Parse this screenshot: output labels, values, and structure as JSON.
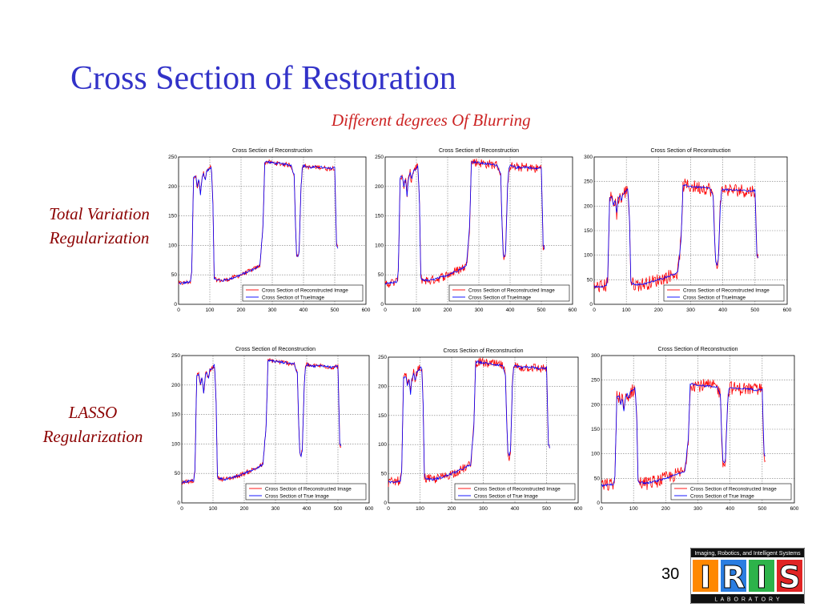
{
  "slide": {
    "title": "Cross Section of Restoration",
    "subtitle": "Different degrees Of Blurring",
    "page_number": "30"
  },
  "rows": [
    {
      "label_line1": "Total Variation",
      "label_line2": "Regularization"
    },
    {
      "label_line1": "LASSO",
      "label_line2": "Regularization"
    }
  ],
  "logo": {
    "tagline": "Imaging, Robotics, and Intelligent Systems",
    "letters": [
      "I",
      "R",
      "I",
      "S"
    ],
    "subline": "L A B O R A T O R Y",
    "colors": {
      "I1": "#ff8800",
      "R": "#2a7de1",
      "I2": "#2db34a",
      "S": "#e02424",
      "bar": "#111111"
    }
  },
  "colors": {
    "reconstructed": "#ff0000",
    "true": "#0000ff",
    "title": "#3232c8",
    "subtitle": "#cc2222",
    "row_label": "#8b0000"
  },
  "chart_data": [
    {
      "id": "tv-low",
      "type": "line",
      "title": "Cross Section of Reconstruction",
      "xlim": [
        0,
        600
      ],
      "ylim": [
        0,
        250
      ],
      "xticks": [
        0,
        100,
        200,
        300,
        400,
        500,
        600
      ],
      "yticks": [
        0,
        50,
        100,
        150,
        200,
        250
      ],
      "grid": true,
      "legend": "bottom-right",
      "noise": 4,
      "series": [
        {
          "name": "Cross Section of Reconstructed Image",
          "color": "#ff0000"
        },
        {
          "name": "Cross Section of TrueImage",
          "color": "#0000ff"
        }
      ]
    },
    {
      "id": "tv-mid",
      "type": "line",
      "title": "Cross Section of Reconstruction",
      "xlim": [
        0,
        600
      ],
      "ylim": [
        0,
        250
      ],
      "xticks": [
        0,
        100,
        200,
        300,
        400,
        500,
        600
      ],
      "yticks": [
        0,
        50,
        100,
        150,
        200,
        250
      ],
      "grid": true,
      "legend": "bottom-right",
      "noise": 8,
      "series": [
        {
          "name": "Cross Section of Reconstructed Image",
          "color": "#ff0000"
        },
        {
          "name": "Cross Section of TrueImage",
          "color": "#0000ff"
        }
      ]
    },
    {
      "id": "tv-high",
      "type": "line",
      "title": "Cross Section of Reconstruction",
      "xlim": [
        0,
        600
      ],
      "ylim": [
        0,
        300
      ],
      "xticks": [
        0,
        100,
        200,
        300,
        400,
        500,
        600
      ],
      "yticks": [
        0,
        50,
        100,
        150,
        200,
        250,
        300
      ],
      "grid": true,
      "legend": "bottom-right",
      "noise": 14,
      "series": [
        {
          "name": "Cross Section of Reconstructed Image",
          "color": "#ff0000"
        },
        {
          "name": "Cross Section of TrueImage",
          "color": "#0000ff"
        }
      ]
    },
    {
      "id": "lasso-low",
      "type": "line",
      "title": "Cross Section of Reconstruction",
      "xlim": [
        0,
        600
      ],
      "ylim": [
        0,
        250
      ],
      "xticks": [
        0,
        100,
        200,
        300,
        400,
        500,
        600
      ],
      "yticks": [
        0,
        50,
        100,
        150,
        200,
        250
      ],
      "grid": true,
      "legend": "bottom-right",
      "noise": 4,
      "series": [
        {
          "name": "Cross Section of Reconstructed Image",
          "color": "#ff0000"
        },
        {
          "name": "Cross Section of True Image",
          "color": "#0000ff"
        }
      ]
    },
    {
      "id": "lasso-mid",
      "type": "line",
      "title": "Cross Section of Reconstruction",
      "xlim": [
        0,
        600
      ],
      "ylim": [
        0,
        250
      ],
      "xticks": [
        0,
        100,
        200,
        300,
        400,
        500,
        600
      ],
      "yticks": [
        0,
        50,
        100,
        150,
        200,
        250
      ],
      "grid": true,
      "legend": "bottom-right",
      "noise": 8,
      "series": [
        {
          "name": "Cross Section of Reconstructed Image",
          "color": "#ff0000"
        },
        {
          "name": "Cross Section of True Image",
          "color": "#0000ff"
        }
      ]
    },
    {
      "id": "lasso-high",
      "type": "line",
      "title": "Cross Section of Reconstruction",
      "xlim": [
        0,
        600
      ],
      "ylim": [
        0,
        300
      ],
      "xticks": [
        0,
        100,
        200,
        300,
        400,
        500,
        600
      ],
      "yticks": [
        0,
        50,
        100,
        150,
        200,
        250,
        300
      ],
      "grid": true,
      "legend": "bottom-right",
      "noise": 14,
      "series": [
        {
          "name": "Cross Section of Reconstructed Image",
          "color": "#ff0000"
        },
        {
          "name": "Cross Section of True Image",
          "color": "#0000ff"
        }
      ]
    }
  ],
  "cross_section_profile": {
    "x": [
      0,
      38,
      42,
      48,
      55,
      60,
      65,
      70,
      75,
      80,
      85,
      90,
      95,
      100,
      105,
      110,
      114,
      118,
      140,
      170,
      200,
      230,
      260,
      270,
      276,
      282,
      300,
      330,
      360,
      370,
      374,
      378,
      382,
      386,
      392,
      396,
      400,
      420,
      450,
      480,
      500,
      504,
      506,
      510
    ],
    "y": [
      35,
      38,
      55,
      215,
      218,
      200,
      215,
      185,
      215,
      222,
      210,
      225,
      228,
      230,
      235,
      170,
      45,
      42,
      40,
      44,
      50,
      57,
      65,
      130,
      240,
      242,
      240,
      238,
      236,
      220,
      140,
      85,
      80,
      90,
      200,
      230,
      235,
      232,
      233,
      230,
      232,
      140,
      100,
      95
    ]
  }
}
